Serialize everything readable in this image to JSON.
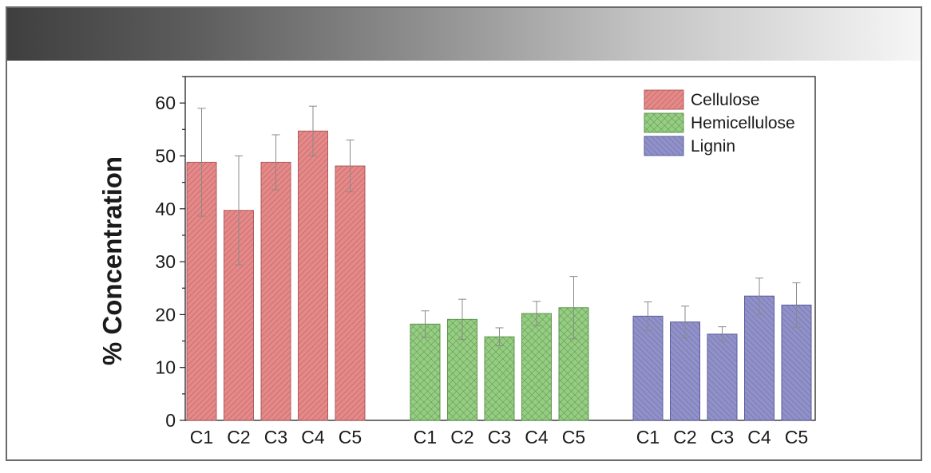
{
  "chart_data": {
    "type": "bar",
    "ylabel": "% Concentration",
    "xlabel": "",
    "ylim": [
      0,
      65
    ],
    "yticks": [
      0,
      10,
      20,
      30,
      40,
      50,
      60
    ],
    "grid": false,
    "legend_position": "top-right",
    "series": [
      {
        "name": "Cellulose",
        "color": "#e98787",
        "pattern": "diagonal",
        "categories": [
          "C1",
          "C2",
          "C3",
          "C4",
          "C5"
        ],
        "values": [
          48.8,
          39.7,
          48.8,
          54.7,
          48.1
        ],
        "errors": [
          10.2,
          10.3,
          5.2,
          4.7,
          4.9
        ]
      },
      {
        "name": "Hemicellulose",
        "color": "#92cf7e",
        "pattern": "crosshatch",
        "categories": [
          "C1",
          "C2",
          "C3",
          "C4",
          "C5"
        ],
        "values": [
          18.2,
          19.1,
          15.8,
          20.2,
          21.3
        ],
        "errors": [
          2.5,
          3.8,
          1.7,
          2.3,
          5.9
        ]
      },
      {
        "name": "Lignin",
        "color": "#9090cc",
        "pattern": "diagonal",
        "categories": [
          "C1",
          "C2",
          "C3",
          "C4",
          "C5"
        ],
        "values": [
          19.7,
          18.6,
          16.3,
          23.5,
          21.8
        ],
        "errors": [
          2.7,
          3.0,
          1.4,
          3.4,
          4.2
        ]
      }
    ]
  }
}
